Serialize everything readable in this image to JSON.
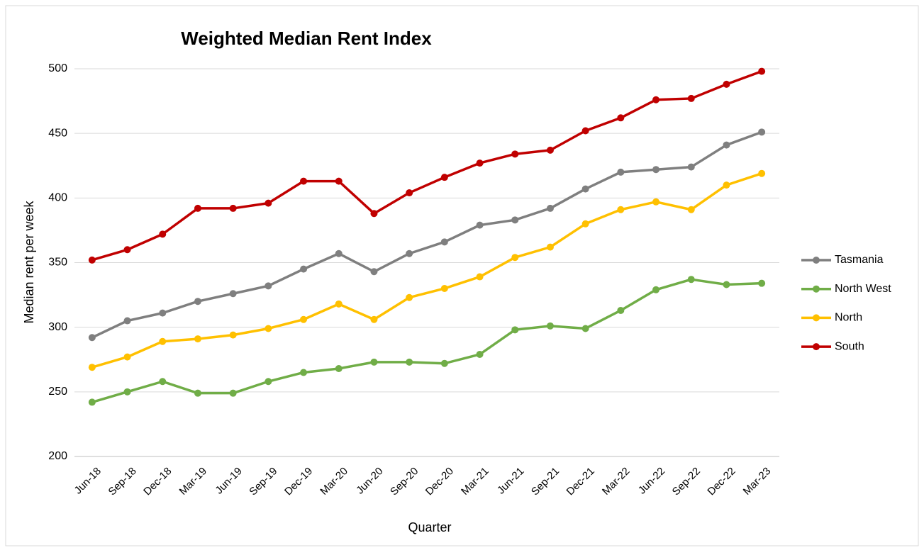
{
  "chart_data": {
    "type": "line",
    "title": "Weighted Median Rent Index",
    "x_label": "Quarter",
    "y_label": "Median rent per week",
    "categories": [
      "Jun-18",
      "Sep-18",
      "Dec-18",
      "Mar-19",
      "Jun-19",
      "Sep-19",
      "Dec-19",
      "Mar-20",
      "Jun-20",
      "Sep-20",
      "Dec-20",
      "Mar-21",
      "Jun-21",
      "Sep-21",
      "Dec-21",
      "Mar-22",
      "Jun-22",
      "Sep-22",
      "Dec-22",
      "Mar-23"
    ],
    "series": [
      {
        "name": "Tasmania",
        "color": "#7f7f7f",
        "values": [
          292,
          305,
          311,
          320,
          326,
          332,
          345,
          357,
          343,
          357,
          366,
          379,
          383,
          392,
          407,
          420,
          422,
          424,
          441,
          451
        ]
      },
      {
        "name": "North West",
        "color": "#70ad47",
        "values": [
          242,
          250,
          258,
          249,
          249,
          258,
          265,
          268,
          273,
          273,
          272,
          279,
          298,
          301,
          299,
          313,
          329,
          337,
          333,
          334
        ]
      },
      {
        "name": "North",
        "color": "#ffc000",
        "values": [
          269,
          277,
          289,
          291,
          294,
          299,
          306,
          318,
          306,
          323,
          330,
          339,
          354,
          362,
          380,
          391,
          397,
          391,
          410,
          419
        ]
      },
      {
        "name": "South",
        "color": "#c00000",
        "values": [
          352,
          360,
          372,
          392,
          392,
          396,
          413,
          413,
          388,
          404,
          416,
          427,
          434,
          437,
          452,
          462,
          476,
          477,
          488,
          498
        ]
      }
    ],
    "ylim": [
      200,
      500
    ],
    "yticks": [
      200,
      250,
      300,
      350,
      400,
      450,
      500
    ],
    "grid": true,
    "legend": "right"
  }
}
